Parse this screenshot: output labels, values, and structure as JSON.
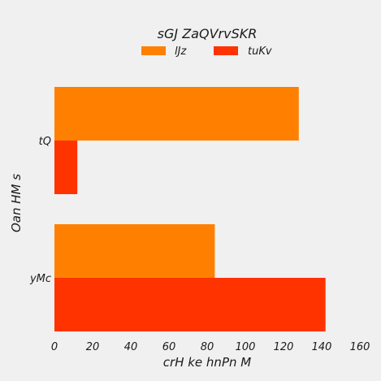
{
  "chart_data": {
    "type": "bar",
    "orientation": "horizontal",
    "title": "sGJ ZaQVrvSKR",
    "xlabel": "crH ke hnPn M",
    "ylabel": "Oan  HM s",
    "categories": [
      "tQ",
      "yMc"
    ],
    "series": [
      {
        "name": "lJz",
        "values": [
          128,
          84
        ],
        "color": "#ff8000"
      },
      {
        "name": "tuKv",
        "values": [
          12,
          142
        ],
        "color": "#ff3300"
      }
    ],
    "xlim": [
      0,
      160
    ],
    "xticks": [
      "0",
      "20",
      "40",
      "60",
      "80",
      "100",
      "120",
      "140",
      "160"
    ],
    "grid": false,
    "legend_position": "top-center"
  }
}
